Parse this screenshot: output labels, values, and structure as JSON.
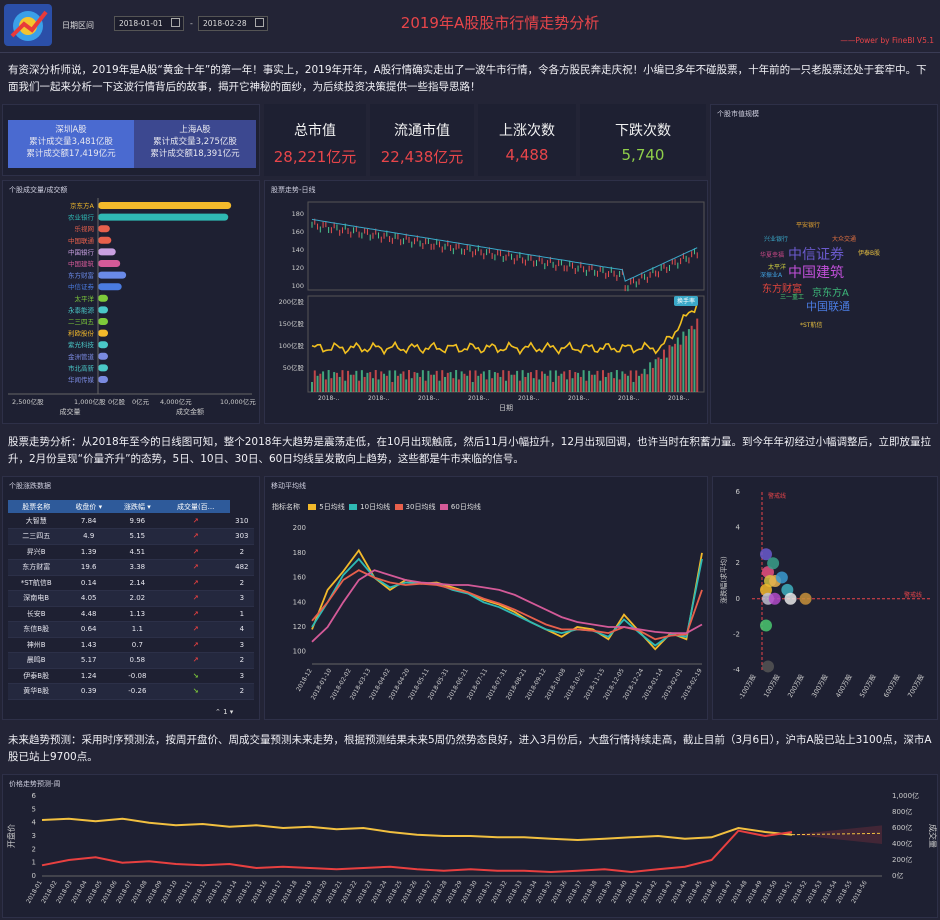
{
  "header": {
    "date_label": "日期区间",
    "date_from": "2018-01-01",
    "date_sep": "-",
    "date_to": "2018-02-28",
    "title": "2019年A股股市行情走势分析",
    "powered": "——Power by FineBI V5.1"
  },
  "intro": "有资深分析师说，2019年是A股“黄金十年”的第一年！事实上，2019年开年，A股行情确实走出了一波牛市行情，令各方股民奔走庆祝！小编已多年不碰股票，十年前的一只老股票还处于套牢中。下面我们一起来分析一下这波行情背后的故事，揭开它神秘的面纱，为后续投资决策提供一些指导思路！",
  "market": {
    "sz_name": "深圳A股",
    "sz_vol": "累计成交量3,481亿股",
    "sz_amt": "累计成交额17,419亿元",
    "sh_name": "上海A股",
    "sh_vol": "累计成交量3,275亿股",
    "sh_amt": "累计成交额18,391亿元"
  },
  "kpis": [
    {
      "label": "总市值",
      "value": "28,221亿元",
      "color": "#e8454a"
    },
    {
      "label": "流通市值",
      "value": "22,438亿元",
      "color": "#e8454a"
    },
    {
      "label": "上涨次数",
      "value": "4,488",
      "color": "#e8454a"
    },
    {
      "label": "下跌次数",
      "value": "5,740",
      "color": "#8fcf4a"
    }
  ],
  "wordcloud": {
    "title": "个股市值规模",
    "words": [
      {
        "t": "中信证券",
        "c": "#6a5acd"
      },
      {
        "t": "中国建筑",
        "c": "#c04fd8"
      },
      {
        "t": "东方财富",
        "c": "#e2453c"
      },
      {
        "t": "京东方A",
        "c": "#3db87a"
      },
      {
        "t": "中国联通",
        "c": "#4a7be0"
      },
      {
        "t": "兴业银行",
        "c": "#3aa8c8"
      },
      {
        "t": "三一重工",
        "c": "#4ac870"
      },
      {
        "t": "平安银行",
        "c": "#e0a030"
      },
      {
        "t": "太平洋",
        "c": "#d0d040"
      },
      {
        "t": "华夏幸福",
        "c": "#d04a8a"
      },
      {
        "t": "*ST航信",
        "c": "#e8c040"
      },
      {
        "t": "伊泰B股",
        "c": "#e8c040"
      },
      {
        "t": "大众交通",
        "c": "#e07040"
      },
      {
        "t": "深振业A",
        "c": "#40a0e0"
      }
    ]
  },
  "vol_chart": {
    "title": "个股成交量/成交额",
    "left_axis_label": "成交量",
    "right_axis_label": "成交金额",
    "left_ticks": [
      "2,500亿股",
      "1,000亿股",
      "0亿股"
    ],
    "right_ticks": [
      "0亿元",
      "4,000亿元",
      "10,000亿元"
    ]
  },
  "kline": {
    "title": "股票走势-日线",
    "y_top": [
      "180",
      "160",
      "140",
      "120",
      "100"
    ],
    "y_bottom": [
      "200亿股",
      "150亿股",
      "100亿股",
      "50亿股"
    ],
    "xlabel": "日期",
    "badge": "换手率"
  },
  "analysis1": "股票走势分析：从2018年至今的日线图可知，整个2018年大趋势是震荡走低，在10月出现触底，然后11月小幅拉升，12月出现回调，也许当时在积蓄力量。到今年年初经过小幅调整后，立即放量拉升，2月份呈现“价量齐升”的态势，5日、10日、30日、60日均线呈发散向上趋势，这些都是牛市来临的信号。",
  "table": {
    "title": "个股涨跌数据",
    "headers": [
      "股票名称",
      "收盘价",
      "涨跌幅",
      "成交量(百..."
    ],
    "pager": "1",
    "rows": [
      [
        "大智慧",
        "7.84",
        "9.96",
        "up",
        "310"
      ],
      [
        "二三四五",
        "4.9",
        "5.15",
        "up",
        "303"
      ],
      [
        "昇兴B",
        "1.39",
        "4.51",
        "up",
        "2"
      ],
      [
        "东方财富",
        "19.6",
        "3.38",
        "up",
        "482"
      ],
      [
        "*ST航信B",
        "0.14",
        "2.14",
        "up",
        "2"
      ],
      [
        "深南电B",
        "4.05",
        "2.02",
        "up",
        "3"
      ],
      [
        "长安B",
        "4.48",
        "1.13",
        "up",
        "1"
      ],
      [
        "东信B股",
        "0.64",
        "1.1",
        "up",
        "4"
      ],
      [
        "神州B",
        "1.43",
        "0.7",
        "up",
        "3"
      ],
      [
        "晨鸣B",
        "5.17",
        "0.58",
        "up",
        "2"
      ],
      [
        "伊泰B股",
        "1.24",
        "-0.08",
        "down",
        "3"
      ],
      [
        "黄华B股",
        "0.39",
        "-0.26",
        "down",
        "2"
      ]
    ]
  },
  "ma": {
    "title": "移动平均线",
    "legend_label": "指标名称",
    "series": [
      {
        "name": "5日均线",
        "color": "#f2b92b"
      },
      {
        "name": "10日均线",
        "color": "#2fb9b4"
      },
      {
        "name": "30日均线",
        "color": "#e8604c"
      },
      {
        "name": "60日均线",
        "color": "#d45a98"
      }
    ],
    "y_ticks": [
      "200",
      "180",
      "160",
      "140",
      "120",
      "100"
    ],
    "x_ticks": [
      "2018-12",
      "2018-01-10",
      "2018-02-02",
      "2018-03-13",
      "2018-04-02",
      "2018-04-20",
      "2018-05-11",
      "2018-05-31",
      "2018-06-21",
      "2018-07-11",
      "2018-07-31",
      "2018-08-21",
      "2018-09-12",
      "2018-10-08",
      "2018-10-26",
      "2018-11-15",
      "2018-12-05",
      "2018-12-24",
      "2019-01-14",
      "2019-02-01",
      "2019-02-19"
    ]
  },
  "scatter": {
    "ylabel": "涨跌幅(求平均)",
    "y_ticks": [
      "6",
      "4",
      "2",
      "0",
      "-2",
      "-4"
    ],
    "x_ticks": [
      "-100万股",
      "100万股",
      "200万股",
      "300万股",
      "400万股",
      "500万股",
      "600万股",
      "700万股"
    ],
    "ref_label": "警戒线",
    "ref_label2": "警戒线"
  },
  "analysis2": "未来趋势预测：采用时序预测法，按周开盘价、周成交量预测未来走势，根据预测结果未来5周仍然势态良好，进入3月份后，大盘行情持续走高，截止目前（3月6日），沪市A股已站上3100点，深市A股已站上9700点。",
  "forecast": {
    "title": "价格走势预测-周",
    "left_label": "开盘价",
    "right_label": "成交量",
    "y_left": [
      "6",
      "5",
      "4",
      "3",
      "2",
      "1",
      "0"
    ],
    "y_right": [
      "1,000亿",
      "800亿",
      "600亿",
      "400亿",
      "200亿",
      "0亿"
    ]
  },
  "chart_data": [
    {
      "type": "bar",
      "title": "个股成交量/成交额",
      "categories": [
        "京东方A",
        "农业银行",
        "乐视网",
        "中国联通",
        "中国银行",
        "中国建筑",
        "东方财富",
        "中信证券",
        "太平洋",
        "永泰能源",
        "二三四五",
        "利欧股份",
        "紫光科技",
        "金洲管道",
        "市北高新",
        "华闻传媒"
      ],
      "series": [
        {
          "name": "成交金额",
          "values": [
            9000,
            8800,
            800,
            900,
            1200,
            1500,
            1900,
            1600,
            400,
            300,
            200,
            500,
            180,
            150,
            120,
            120
          ]
        }
      ],
      "xlim": [
        0,
        10000
      ]
    },
    {
      "type": "line",
      "title": "移动平均线",
      "series": [
        {
          "name": "5日均线",
          "values": [
            118,
            150,
            165,
            182,
            160,
            150,
            158,
            155,
            156,
            152,
            148,
            142,
            138,
            132,
            124,
            118,
            112,
            120,
            118,
            110,
            130,
            116,
            102,
            115,
            110,
            180
          ]
        },
        {
          "name": "10日均线",
          "values": [
            120,
            140,
            162,
            175,
            160,
            152,
            156,
            155,
            155,
            150,
            147,
            140,
            136,
            130,
            124,
            118,
            115,
            118,
            117,
            112,
            126,
            115,
            105,
            114,
            112,
            175
          ]
        },
        {
          "name": "30日均线",
          "values": [
            125,
            140,
            158,
            166,
            160,
            156,
            154,
            155,
            154,
            151,
            148,
            143,
            139,
            134,
            128,
            122,
            118,
            118,
            117,
            115,
            120,
            117,
            110,
            113,
            114,
            150
          ]
        },
        {
          "name": "60日均线",
          "values": [
            108,
            120,
            140,
            158,
            166,
            162,
            158,
            156,
            155,
            154,
            154,
            152,
            150,
            146,
            140,
            134,
            128,
            124,
            122,
            120,
            120,
            118,
            116,
            115,
            115,
            122
          ]
        }
      ],
      "ylim": [
        90,
        205
      ]
    },
    {
      "type": "scatter",
      "ylabel": "涨跌幅(求平均)",
      "points": [
        [
          0,
          2.5
        ],
        [
          0,
          1.5
        ],
        [
          0,
          1
        ],
        [
          0,
          0.5
        ],
        [
          0,
          0
        ],
        [
          20,
          0
        ],
        [
          30,
          2
        ],
        [
          30,
          1
        ],
        [
          50,
          1.2
        ],
        [
          90,
          0.5
        ],
        [
          95,
          0
        ],
        [
          150,
          0
        ],
        [
          0,
          -1.5
        ],
        [
          0,
          -3.8
        ]
      ],
      "ylim": [
        -4,
        6
      ]
    },
    {
      "type": "line",
      "title": "价格走势预测-周",
      "series": [
        {
          "name": "开盘价",
          "values": [
            4.2,
            4.3,
            4.1,
            4.3,
            4.0,
            3.8,
            3.9,
            3.7,
            3.8,
            3.6,
            3.7,
            3.5,
            3.6,
            3.3,
            3.1,
            3.0,
            3.0,
            2.9,
            2.9,
            2.8,
            2.7,
            2.8,
            2.9,
            3.0,
            2.8,
            2.9,
            3.6,
            3.3,
            3.1
          ]
        },
        {
          "name": "成交量",
          "values": [
            0.8,
            1.2,
            1.4,
            1.0,
            1.1,
            0.9,
            0.8,
            0.9,
            0.6,
            0.7,
            0.6,
            0.5,
            0.6,
            0.7,
            0.5,
            0.4,
            0.5,
            0.4,
            0.4,
            0.3,
            0.4,
            0.5,
            0.3,
            0.5,
            0.7,
            1.2,
            3.4,
            3.0,
            3.3
          ]
        }
      ],
      "ylim": [
        0,
        6
      ]
    }
  ]
}
